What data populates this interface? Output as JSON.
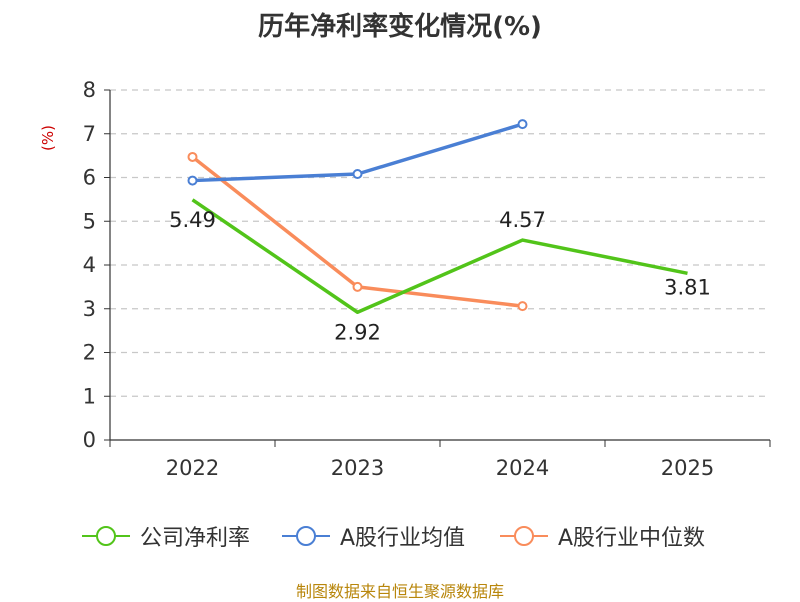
{
  "chart_data": {
    "type": "line",
    "title": "历年净利率变化情况(%)",
    "xlabel": "",
    "ylabel": "(%)",
    "ylim": [
      0,
      8
    ],
    "y_ticks": [
      "0",
      "1",
      "2",
      "3",
      "4",
      "5",
      "6",
      "7",
      "8"
    ],
    "categories": [
      "2022",
      "2023",
      "2024",
      "2025"
    ],
    "grid": true,
    "legend_position": "bottom",
    "series": [
      {
        "name": "公司净利率",
        "color": "#52c41a",
        "values": [
          5.49,
          2.92,
          4.57,
          3.81
        ],
        "labels": [
          "5.49",
          "2.92",
          "4.57",
          "3.81"
        ]
      },
      {
        "name": "A股行业均值",
        "color": "#4a7fd4",
        "values": [
          5.93,
          6.08,
          7.22,
          null
        ]
      },
      {
        "name": "A股行业中位数",
        "color": "#f98c5b",
        "values": [
          6.47,
          3.5,
          3.06,
          null
        ]
      }
    ],
    "source": "制图数据来自恒生聚源数据库"
  }
}
